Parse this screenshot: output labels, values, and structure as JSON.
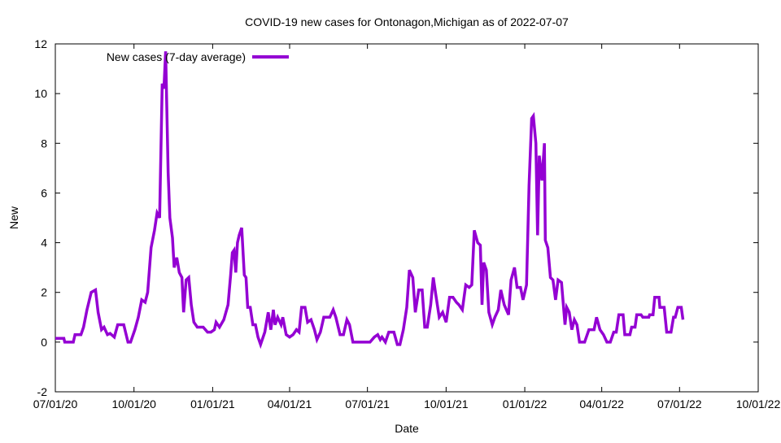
{
  "chart_data": {
    "type": "line",
    "title": "COVID-19 new cases for Ontonagon,Michigan as of 2022-07-07",
    "xlabel": "Date",
    "ylabel": "New",
    "x_start_date": "2020-07-01",
    "x_units": "days since 07/01/20",
    "xlim": [
      0,
      822
    ],
    "ylim": [
      -2,
      12
    ],
    "xticks": [
      {
        "day": 0,
        "label": "07/01/20"
      },
      {
        "day": 92,
        "label": "10/01/20"
      },
      {
        "day": 184,
        "label": "01/01/21"
      },
      {
        "day": 274,
        "label": "04/01/21"
      },
      {
        "day": 365,
        "label": "07/01/21"
      },
      {
        "day": 457,
        "label": "10/01/21"
      },
      {
        "day": 549,
        "label": "01/01/22"
      },
      {
        "day": 639,
        "label": "04/01/22"
      },
      {
        "day": 730,
        "label": "07/01/22"
      },
      {
        "day": 822,
        "label": "10/01/22"
      }
    ],
    "yticks": [
      -2,
      0,
      2,
      4,
      6,
      8,
      10,
      12
    ],
    "grid": false,
    "legend": {
      "position": "top-left",
      "entries": [
        "New cases (7-day average)"
      ]
    },
    "series": [
      {
        "name": "New cases (7-day average)",
        "color": "#9400d3",
        "points": [
          [
            0,
            0.15
          ],
          [
            10,
            0.15
          ],
          [
            11,
            0
          ],
          [
            21,
            0
          ],
          [
            23,
            0.3
          ],
          [
            30,
            0.3
          ],
          [
            33,
            0.6
          ],
          [
            37,
            1.3
          ],
          [
            42,
            2.0
          ],
          [
            47,
            2.1
          ],
          [
            50,
            1.2
          ],
          [
            54,
            0.5
          ],
          [
            57,
            0.6
          ],
          [
            61,
            0.3
          ],
          [
            64,
            0.35
          ],
          [
            69,
            0.2
          ],
          [
            73,
            0.7
          ],
          [
            80,
            0.7
          ],
          [
            85,
            0
          ],
          [
            88,
            0
          ],
          [
            93,
            0.5
          ],
          [
            97,
            1.0
          ],
          [
            101,
            1.7
          ],
          [
            105,
            1.6
          ],
          [
            108,
            2.0
          ],
          [
            112,
            3.8
          ],
          [
            116,
            4.5
          ],
          [
            119,
            5.2
          ],
          [
            122,
            5.0
          ],
          [
            125,
            10.4
          ],
          [
            127,
            10.2
          ],
          [
            129,
            11.7
          ],
          [
            132,
            6.8
          ],
          [
            134,
            5.0
          ],
          [
            137,
            4.2
          ],
          [
            139,
            3.0
          ],
          [
            142,
            3.4
          ],
          [
            145,
            2.8
          ],
          [
            148,
            2.6
          ],
          [
            150,
            1.2
          ],
          [
            153,
            2.5
          ],
          [
            156,
            2.6
          ],
          [
            159,
            1.5
          ],
          [
            162,
            0.8
          ],
          [
            166,
            0.6
          ],
          [
            173,
            0.6
          ],
          [
            178,
            0.4
          ],
          [
            182,
            0.4
          ],
          [
            186,
            0.5
          ],
          [
            188,
            0.8
          ],
          [
            192,
            0.6
          ],
          [
            197,
            0.9
          ],
          [
            202,
            1.5
          ],
          [
            205,
            2.7
          ],
          [
            207,
            3.6
          ],
          [
            209,
            3.7
          ],
          [
            211,
            2.8
          ],
          [
            213,
            4.0
          ],
          [
            215,
            4.3
          ],
          [
            218,
            4.6
          ],
          [
            221,
            2.7
          ],
          [
            223,
            2.6
          ],
          [
            225,
            1.4
          ],
          [
            228,
            1.4
          ],
          [
            231,
            0.7
          ],
          [
            234,
            0.7
          ],
          [
            237,
            0.2
          ],
          [
            240,
            -0.1
          ],
          [
            245,
            0.4
          ],
          [
            249,
            1.2
          ],
          [
            252,
            0.5
          ],
          [
            255,
            1.3
          ],
          [
            257,
            0.7
          ],
          [
            260,
            1.0
          ],
          [
            264,
            0.7
          ],
          [
            266,
            1.0
          ],
          [
            270,
            0.3
          ],
          [
            274,
            0.2
          ],
          [
            278,
            0.3
          ],
          [
            282,
            0.5
          ],
          [
            285,
            0.4
          ],
          [
            288,
            1.4
          ],
          [
            292,
            1.4
          ],
          [
            295,
            0.8
          ],
          [
            299,
            0.9
          ],
          [
            303,
            0.5
          ],
          [
            306,
            0.1
          ],
          [
            310,
            0.4
          ],
          [
            314,
            1.0
          ],
          [
            321,
            1.0
          ],
          [
            325,
            1.3
          ],
          [
            328,
            1.0
          ],
          [
            333,
            0.3
          ],
          [
            337,
            0.3
          ],
          [
            341,
            0.9
          ],
          [
            344,
            0.7
          ],
          [
            348,
            0
          ],
          [
            368,
            0
          ],
          [
            373,
            0.2
          ],
          [
            377,
            0.3
          ],
          [
            380,
            0.1
          ],
          [
            382,
            0.2
          ],
          [
            386,
            0
          ],
          [
            390,
            0.4
          ],
          [
            396,
            0.4
          ],
          [
            400,
            -0.1
          ],
          [
            403,
            -0.1
          ],
          [
            407,
            0.5
          ],
          [
            411,
            1.4
          ],
          [
            414,
            2.9
          ],
          [
            418,
            2.6
          ],
          [
            421,
            1.2
          ],
          [
            425,
            2.1
          ],
          [
            429,
            2.1
          ],
          [
            432,
            0.6
          ],
          [
            435,
            0.6
          ],
          [
            439,
            1.5
          ],
          [
            442,
            2.6
          ],
          [
            445,
            1.9
          ],
          [
            449,
            1.0
          ],
          [
            453,
            1.2
          ],
          [
            457,
            0.8
          ],
          [
            461,
            1.8
          ],
          [
            465,
            1.8
          ],
          [
            469,
            1.6
          ],
          [
            472,
            1.5
          ],
          [
            476,
            1.3
          ],
          [
            480,
            2.3
          ],
          [
            484,
            2.2
          ],
          [
            487,
            2.3
          ],
          [
            490,
            4.5
          ],
          [
            494,
            4.0
          ],
          [
            497,
            3.9
          ],
          [
            499,
            1.5
          ],
          [
            501,
            3.2
          ],
          [
            504,
            2.9
          ],
          [
            507,
            1.2
          ],
          [
            511,
            0.7
          ],
          [
            514,
            1.0
          ],
          [
            518,
            1.3
          ],
          [
            521,
            2.1
          ],
          [
            525,
            1.5
          ],
          [
            530,
            1.1
          ],
          [
            533,
            2.5
          ],
          [
            537,
            3.0
          ],
          [
            540,
            2.2
          ],
          [
            544,
            2.2
          ],
          [
            547,
            1.7
          ],
          [
            551,
            2.3
          ],
          [
            554,
            6.3
          ],
          [
            557,
            9.0
          ],
          [
            559,
            9.1
          ],
          [
            562,
            8.0
          ],
          [
            564,
            4.3
          ],
          [
            566,
            7.5
          ],
          [
            569,
            6.5
          ],
          [
            572,
            8.0
          ],
          [
            573,
            4.1
          ],
          [
            576,
            3.8
          ],
          [
            579,
            2.6
          ],
          [
            582,
            2.5
          ],
          [
            585,
            1.7
          ],
          [
            588,
            2.5
          ],
          [
            592,
            2.4
          ],
          [
            596,
            0.7
          ],
          [
            598,
            1.4
          ],
          [
            601,
            1.2
          ],
          [
            604,
            0.5
          ],
          [
            607,
            0.9
          ],
          [
            610,
            0.7
          ],
          [
            613,
            0
          ],
          [
            619,
            0
          ],
          [
            624,
            0.5
          ],
          [
            630,
            0.5
          ],
          [
            633,
            1.0
          ],
          [
            637,
            0.5
          ],
          [
            641,
            0.3
          ],
          [
            645,
            0
          ],
          [
            649,
            0
          ],
          [
            653,
            0.4
          ],
          [
            656,
            0.4
          ],
          [
            659,
            1.1
          ],
          [
            664,
            1.1
          ],
          [
            666,
            0.3
          ],
          [
            672,
            0.3
          ],
          [
            674,
            0.6
          ],
          [
            678,
            0.6
          ],
          [
            680,
            1.1
          ],
          [
            685,
            1.1
          ],
          [
            687,
            1.0
          ],
          [
            694,
            1.0
          ],
          [
            695,
            1.1
          ],
          [
            699,
            1.1
          ],
          [
            701,
            1.8
          ],
          [
            706,
            1.8
          ],
          [
            707,
            1.4
          ],
          [
            712,
            1.4
          ],
          [
            715,
            0.4
          ],
          [
            720,
            0.4
          ],
          [
            723,
            1.0
          ],
          [
            725,
            1.0
          ],
          [
            728,
            1.4
          ],
          [
            732,
            1.4
          ],
          [
            734,
            0.9
          ]
        ]
      }
    ]
  }
}
